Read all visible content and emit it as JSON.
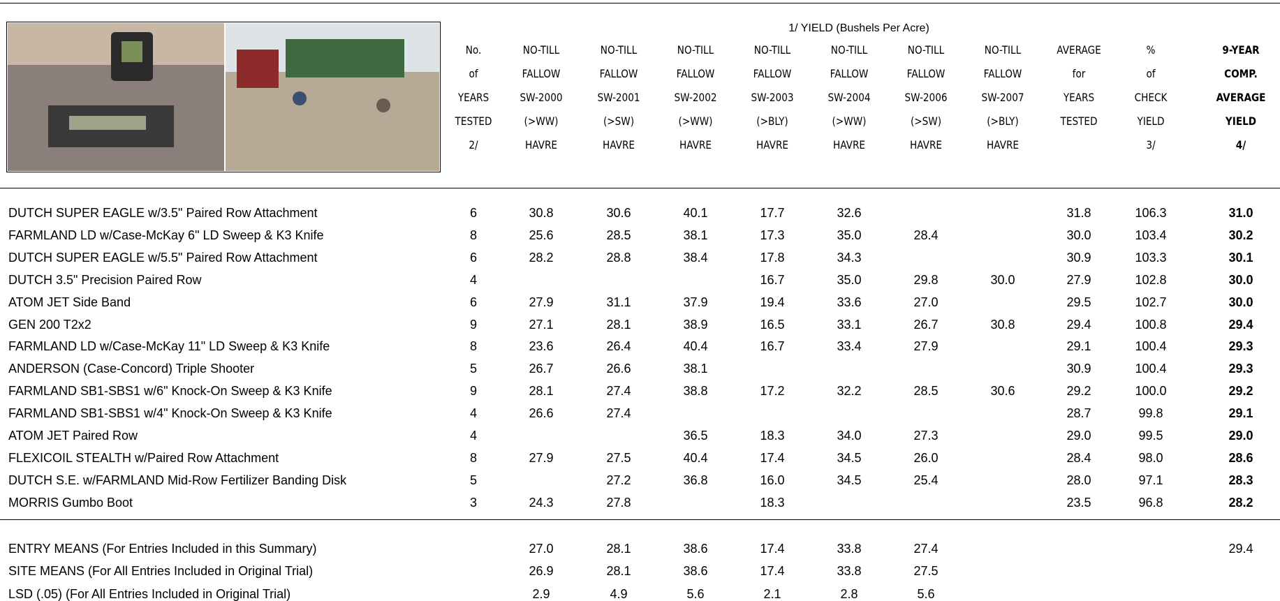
{
  "table": {
    "group_header": "1/ YIELD (Bushels Per Acre)",
    "columns": [
      [
        "No.",
        "of",
        "YEARS",
        "TESTED",
        "2/"
      ],
      [
        "NO-TILL",
        "FALLOW",
        "SW-2000",
        "(>WW)",
        "HAVRE"
      ],
      [
        "NO-TILL",
        "FALLOW",
        "SW-2001",
        "(>SW)",
        "HAVRE"
      ],
      [
        "NO-TILL",
        "FALLOW",
        "SW-2002",
        "(>WW)",
        "HAVRE"
      ],
      [
        "NO-TILL",
        "FALLOW",
        "SW-2003",
        "(>BLY)",
        "HAVRE"
      ],
      [
        "NO-TILL",
        "FALLOW",
        "SW-2004",
        "(>WW)",
        "HAVRE"
      ],
      [
        "NO-TILL",
        "FALLOW",
        "SW-2006",
        "(>SW)",
        "HAVRE"
      ],
      [
        "NO-TILL",
        "FALLOW",
        "SW-2007",
        "(>BLY)",
        "HAVRE"
      ],
      [
        "AVERAGE",
        "for",
        "YEARS",
        "TESTED"
      ],
      [
        "%",
        "of",
        "CHECK",
        "YIELD",
        "3/"
      ],
      [
        "9-YEAR",
        "COMP.",
        "AVERAGE",
        "YIELD",
        "4/"
      ]
    ],
    "rows": [
      [
        "DUTCH SUPER EAGLE w/3.5\" Paired Row Attachment",
        "6",
        "30.8",
        "30.6",
        "40.1",
        "17.7",
        "32.6",
        null,
        null,
        "31.8",
        "106.3",
        "31.0"
      ],
      [
        "FARMLAND LD w/Case-McKay 6\" LD Sweep & K3 Knife",
        "8",
        "25.6",
        "28.5",
        "38.1",
        "17.3",
        "35.0",
        "28.4",
        null,
        "30.0",
        "103.4",
        "30.2"
      ],
      [
        "DUTCH SUPER EAGLE w/5.5\" Paired Row Attachment",
        "6",
        "28.2",
        "28.8",
        "38.4",
        "17.8",
        "34.3",
        null,
        null,
        "30.9",
        "103.3",
        "30.1"
      ],
      [
        "DUTCH 3.5\" Precision Paired Row",
        "4",
        null,
        null,
        null,
        "16.7",
        "35.0",
        "29.8",
        "30.0",
        "27.9",
        "102.8",
        "30.0"
      ],
      [
        "ATOM JET Side Band",
        "6",
        "27.9",
        "31.1",
        "37.9",
        "19.4",
        "33.6",
        "27.0",
        null,
        "29.5",
        "102.7",
        "30.0"
      ],
      [
        "GEN 200 T2x2",
        "9",
        "27.1",
        "28.1",
        "38.9",
        "16.5",
        "33.1",
        "26.7",
        "30.8",
        "29.4",
        "100.8",
        "29.4"
      ],
      [
        "FARMLAND LD w/Case-McKay 11\" LD Sweep & K3 Knife",
        "8",
        "23.6",
        "26.4",
        "40.4",
        "16.7",
        "33.4",
        "27.9",
        null,
        "29.1",
        "100.4",
        "29.3"
      ],
      [
        "ANDERSON (Case-Concord) Triple Shooter",
        "5",
        "26.7",
        "26.6",
        "38.1",
        null,
        null,
        null,
        null,
        "30.9",
        "100.4",
        "29.3"
      ],
      [
        "FARMLAND SB1-SBS1 w/6\" Knock-On Sweep & K3 Knife",
        "9",
        "28.1",
        "27.4",
        "38.8",
        "17.2",
        "32.2",
        "28.5",
        "30.6",
        "29.2",
        "100.0",
        "29.2"
      ],
      [
        "FARMLAND SB1-SBS1 w/4\" Knock-On Sweep & K3 Knife",
        "4",
        "26.6",
        "27.4",
        null,
        null,
        null,
        null,
        null,
        "28.7",
        "99.8",
        "29.1"
      ],
      [
        "ATOM JET Paired Row",
        "4",
        null,
        null,
        "36.5",
        "18.3",
        "34.0",
        "27.3",
        null,
        "29.0",
        "99.5",
        "29.0"
      ],
      [
        "FLEXICOIL STEALTH w/Paired Row Attachment",
        "8",
        "27.9",
        "27.5",
        "40.4",
        "17.4",
        "34.5",
        "26.0",
        null,
        "28.4",
        "98.0",
        "28.6"
      ],
      [
        "DUTCH S.E. w/FARMLAND Mid-Row Fertilizer Banding Disk",
        "5",
        null,
        "27.2",
        "36.8",
        "16.0",
        "34.5",
        "25.4",
        null,
        "28.0",
        "97.1",
        "28.3"
      ],
      [
        "MORRIS Gumbo Boot",
        "3",
        "24.3",
        "27.8",
        null,
        "18.3",
        null,
        null,
        null,
        "23.5",
        "96.8",
        "28.2"
      ]
    ],
    "summary_rows": [
      [
        "ENTRY MEANS (For Entries Included in this Summary)",
        null,
        "27.0",
        "28.1",
        "38.6",
        "17.4",
        "33.8",
        "27.4",
        null,
        null,
        null,
        "29.4"
      ],
      [
        "SITE MEANS (For All Entries Included in Original Trial)",
        null,
        "26.9",
        "28.1",
        "38.6",
        "17.4",
        "33.8",
        "27.5",
        null,
        null,
        null,
        null
      ],
      [
        "LSD (.05) (For All Entries Included in Original Trial)",
        null,
        "2.9",
        "4.9",
        "5.6",
        "2.1",
        "2.8",
        "5.6",
        null,
        null,
        null,
        null
      ]
    ]
  }
}
